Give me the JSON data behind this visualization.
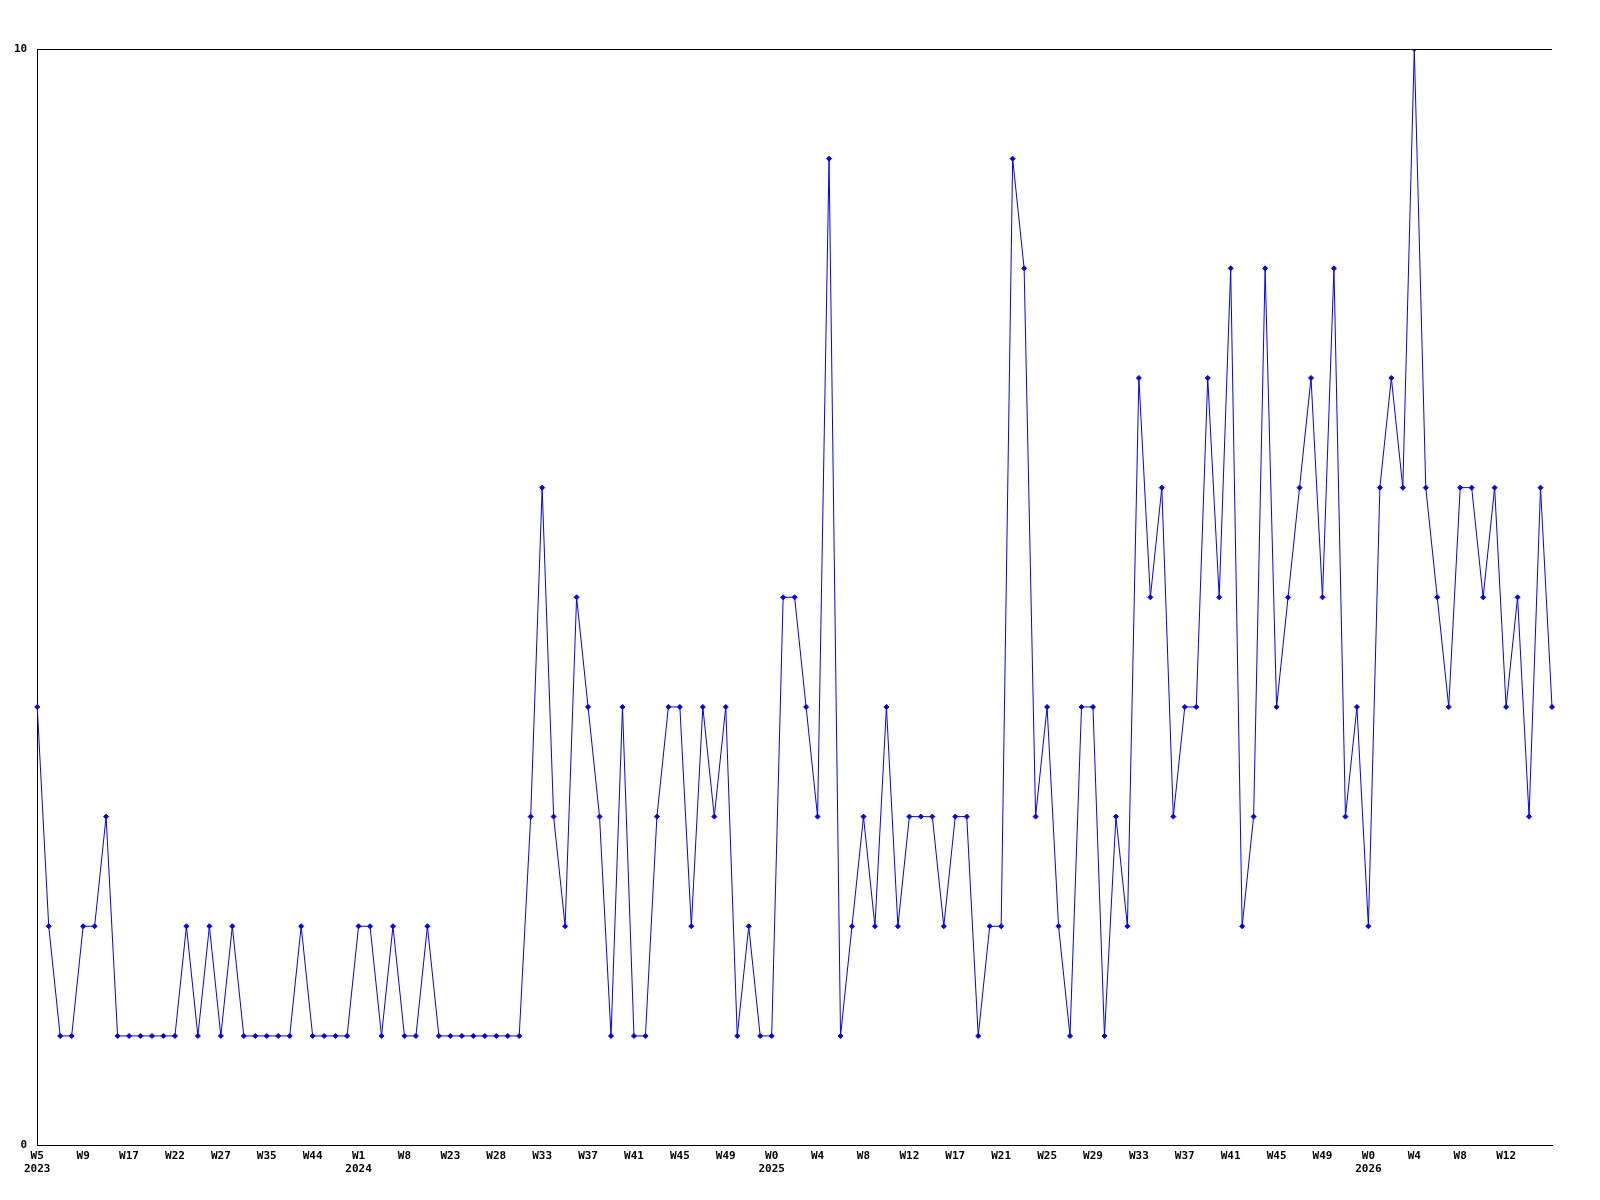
{
  "chart_data": {
    "type": "line",
    "categories": [
      "W5\n2023",
      null,
      null,
      null,
      "W9",
      null,
      null,
      null,
      "W17",
      null,
      null,
      null,
      "W22",
      null,
      null,
      null,
      "W27",
      null,
      null,
      null,
      "W35",
      null,
      null,
      null,
      "W44",
      null,
      null,
      null,
      "W1\n2024",
      null,
      null,
      null,
      "W8",
      null,
      null,
      null,
      "W23",
      null,
      null,
      null,
      "W28",
      null,
      null,
      null,
      "W33",
      null,
      null,
      null,
      "W37",
      null,
      null,
      null,
      "W41",
      null,
      null,
      null,
      "W45",
      null,
      null,
      null,
      "W49",
      null,
      null,
      null,
      "W0\n2025",
      null,
      null,
      null,
      "W4",
      null,
      null,
      null,
      "W8",
      null,
      null,
      null,
      "W12",
      null,
      null,
      null,
      "W17",
      null,
      null,
      null,
      "W21",
      null,
      null,
      null,
      "W25",
      null,
      null,
      null,
      "W29",
      null,
      null,
      null,
      "W33",
      null,
      null,
      null,
      "W37",
      null,
      null,
      null,
      "W41",
      null,
      null,
      null,
      "W45",
      null,
      null,
      null,
      "W49",
      null,
      null,
      null,
      "W0\n2026",
      null,
      null,
      null,
      "W4",
      null,
      null,
      null,
      "W8",
      null,
      null,
      null,
      "W12",
      null,
      null,
      null,
      null
    ],
    "series": [
      {
        "color": "#0000ff",
        "values": [
          4,
          2,
          1,
          1,
          2,
          2,
          3,
          1,
          1,
          1,
          1,
          1,
          1,
          2,
          1,
          2,
          1,
          2,
          1,
          1,
          1,
          1,
          1,
          2,
          1,
          1,
          1,
          1,
          2,
          2,
          1,
          2,
          1,
          1,
          2,
          1,
          1,
          1,
          1,
          1,
          1,
          1,
          1,
          3,
          6,
          3,
          2,
          5,
          4,
          3,
          1,
          4,
          1,
          1,
          3,
          4,
          4,
          2,
          4,
          3,
          4,
          1,
          2,
          1,
          1,
          5,
          5,
          4,
          3,
          9,
          1,
          2,
          3,
          2,
          4,
          2,
          3,
          3,
          3,
          2,
          3,
          3,
          1,
          2,
          2,
          9,
          8,
          3,
          4,
          2,
          1,
          4,
          4,
          1,
          3,
          2,
          7,
          5,
          6,
          3,
          4,
          4,
          7,
          5,
          8,
          2,
          3,
          8,
          4,
          5,
          6,
          7,
          5,
          8,
          3,
          4,
          2,
          6,
          7,
          6,
          10,
          6,
          5,
          4,
          6,
          6,
          5,
          6,
          4,
          5,
          3,
          6,
          4
        ]
      }
    ],
    "ylim": [
      0,
      10
    ],
    "yticks": [
      0,
      10
    ],
    "grid": false,
    "legend": false,
    "marker": "diamond",
    "line_style": "solid"
  }
}
